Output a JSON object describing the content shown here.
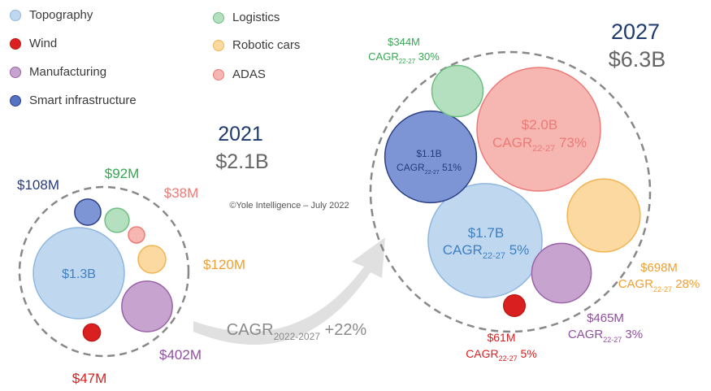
{
  "legend": [
    {
      "label": "Topography",
      "fill": "#bfd8ef",
      "stroke": "#8fb7df"
    },
    {
      "label": "Wind",
      "fill": "#d91f1f",
      "stroke": "#c21a1a"
    },
    {
      "label": "Manufacturing",
      "fill": "#c7a3cf",
      "stroke": "#9a63a8"
    },
    {
      "label": "Smart infrastructure",
      "fill": "#5573c4",
      "stroke": "#2c3f86"
    },
    {
      "label": "Logistics",
      "fill": "#b5e0bf",
      "stroke": "#6fbf82"
    },
    {
      "label": "Robotic cars",
      "fill": "#fbd9a0",
      "stroke": "#f3b452"
    },
    {
      "label": "ADAS",
      "fill": "#f6b7b3",
      "stroke": "#ec7a76"
    }
  ],
  "colors": {
    "Topography": {
      "fill": "#bfd8ef",
      "stroke": "#8fb7df",
      "text": "#3f7fc4"
    },
    "Wind": {
      "fill": "#d91f1f",
      "stroke": "#c21a1a",
      "text": "#d91f1f"
    },
    "Manufacturing": {
      "fill": "#c7a3cf",
      "stroke": "#9a63a8",
      "text": "#8e4f9e"
    },
    "Smart infrastructure": {
      "fill": "#7d95d4",
      "stroke": "#2c3f86",
      "text": "#263a7e"
    },
    "Logistics": {
      "fill": "#b5e0bf",
      "stroke": "#6fbf82",
      "text": "#35a852"
    },
    "Robotic cars": {
      "fill": "#fbd9a0",
      "stroke": "#f3b452",
      "text": "#f0a030"
    },
    "ADAS": {
      "fill": "#f6b7b3",
      "stroke": "#ec7a76",
      "text": "#ec7a76"
    },
    "year_title": "#1f3a6e",
    "total": "#666666",
    "dashed": "#888888",
    "arrow": "#e0e0e0",
    "cagr_text": "#8a8a8a",
    "source_text": "#555555"
  },
  "source": "©Yole Intelligence – July 2022",
  "growth": {
    "prefix": "CAGR",
    "sub": "2022-2027",
    "value": "+22%"
  },
  "chart_data": [
    {
      "type": "bubble",
      "year": "2021",
      "total": "$2.1B",
      "series": [
        {
          "name": "Topography",
          "value": 1300,
          "label": "$1.3B"
        },
        {
          "name": "Manufacturing",
          "value": 402,
          "label": "$402M"
        },
        {
          "name": "Robotic cars",
          "value": 120,
          "label": "$120M"
        },
        {
          "name": "Smart infrastructure",
          "value": 108,
          "label": "$108M"
        },
        {
          "name": "Logistics",
          "value": 92,
          "label": "$92M"
        },
        {
          "name": "Wind",
          "value": 47,
          "label": "$47M"
        },
        {
          "name": "ADAS",
          "value": 38,
          "label": "$38M"
        }
      ]
    },
    {
      "type": "bubble",
      "year": "2027",
      "total": "$6.3B",
      "cagr_prefix": "CAGR",
      "cagr_sub": "22-27",
      "series": [
        {
          "name": "ADAS",
          "value": 2000,
          "label": "$2.0B",
          "cagr": "73%"
        },
        {
          "name": "Topography",
          "value": 1700,
          "label": "$1.7B",
          "cagr": "5%"
        },
        {
          "name": "Smart infrastructure",
          "value": 1100,
          "label": "$1.1B",
          "cagr": "51%"
        },
        {
          "name": "Robotic cars",
          "value": 698,
          "label": "$698M",
          "cagr": "28%"
        },
        {
          "name": "Manufacturing",
          "value": 465,
          "label": "$465M",
          "cagr": "3%"
        },
        {
          "name": "Logistics",
          "value": 344,
          "label": "$344M",
          "cagr": "30%"
        },
        {
          "name": "Wind",
          "value": 61,
          "label": "$61M",
          "cagr": "5%"
        }
      ]
    }
  ]
}
